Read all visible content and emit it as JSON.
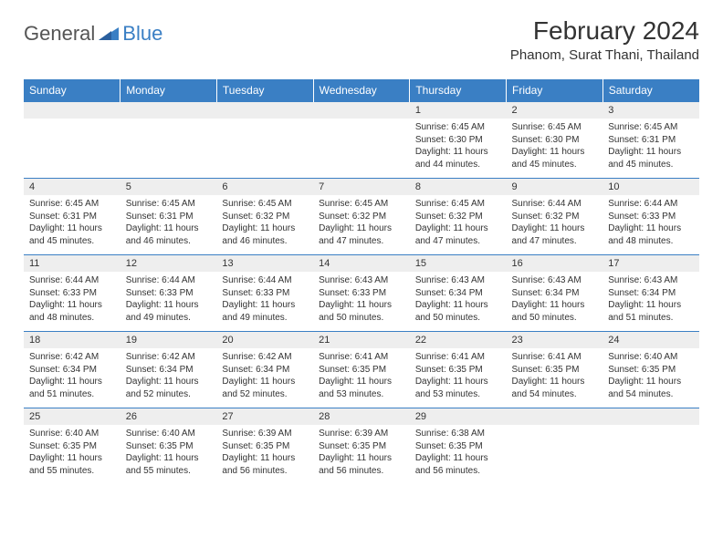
{
  "brand": {
    "part1": "General",
    "part2": "Blue"
  },
  "title": "February 2024",
  "location": "Phanom, Surat Thani, Thailand",
  "colors": {
    "header_bg": "#3a7fc4",
    "header_text": "#ffffff",
    "daynum_bg": "#eeeeee",
    "border": "#3a7fc4",
    "text": "#333333",
    "page_bg": "#ffffff"
  },
  "day_headers": [
    "Sunday",
    "Monday",
    "Tuesday",
    "Wednesday",
    "Thursday",
    "Friday",
    "Saturday"
  ],
  "weeks": [
    [
      {
        "n": "",
        "sr": "",
        "ss": "",
        "dl": ""
      },
      {
        "n": "",
        "sr": "",
        "ss": "",
        "dl": ""
      },
      {
        "n": "",
        "sr": "",
        "ss": "",
        "dl": ""
      },
      {
        "n": "",
        "sr": "",
        "ss": "",
        "dl": ""
      },
      {
        "n": "1",
        "sr": "Sunrise: 6:45 AM",
        "ss": "Sunset: 6:30 PM",
        "dl": "Daylight: 11 hours and 44 minutes."
      },
      {
        "n": "2",
        "sr": "Sunrise: 6:45 AM",
        "ss": "Sunset: 6:30 PM",
        "dl": "Daylight: 11 hours and 45 minutes."
      },
      {
        "n": "3",
        "sr": "Sunrise: 6:45 AM",
        "ss": "Sunset: 6:31 PM",
        "dl": "Daylight: 11 hours and 45 minutes."
      }
    ],
    [
      {
        "n": "4",
        "sr": "Sunrise: 6:45 AM",
        "ss": "Sunset: 6:31 PM",
        "dl": "Daylight: 11 hours and 45 minutes."
      },
      {
        "n": "5",
        "sr": "Sunrise: 6:45 AM",
        "ss": "Sunset: 6:31 PM",
        "dl": "Daylight: 11 hours and 46 minutes."
      },
      {
        "n": "6",
        "sr": "Sunrise: 6:45 AM",
        "ss": "Sunset: 6:32 PM",
        "dl": "Daylight: 11 hours and 46 minutes."
      },
      {
        "n": "7",
        "sr": "Sunrise: 6:45 AM",
        "ss": "Sunset: 6:32 PM",
        "dl": "Daylight: 11 hours and 47 minutes."
      },
      {
        "n": "8",
        "sr": "Sunrise: 6:45 AM",
        "ss": "Sunset: 6:32 PM",
        "dl": "Daylight: 11 hours and 47 minutes."
      },
      {
        "n": "9",
        "sr": "Sunrise: 6:44 AM",
        "ss": "Sunset: 6:32 PM",
        "dl": "Daylight: 11 hours and 47 minutes."
      },
      {
        "n": "10",
        "sr": "Sunrise: 6:44 AM",
        "ss": "Sunset: 6:33 PM",
        "dl": "Daylight: 11 hours and 48 minutes."
      }
    ],
    [
      {
        "n": "11",
        "sr": "Sunrise: 6:44 AM",
        "ss": "Sunset: 6:33 PM",
        "dl": "Daylight: 11 hours and 48 minutes."
      },
      {
        "n": "12",
        "sr": "Sunrise: 6:44 AM",
        "ss": "Sunset: 6:33 PM",
        "dl": "Daylight: 11 hours and 49 minutes."
      },
      {
        "n": "13",
        "sr": "Sunrise: 6:44 AM",
        "ss": "Sunset: 6:33 PM",
        "dl": "Daylight: 11 hours and 49 minutes."
      },
      {
        "n": "14",
        "sr": "Sunrise: 6:43 AM",
        "ss": "Sunset: 6:33 PM",
        "dl": "Daylight: 11 hours and 50 minutes."
      },
      {
        "n": "15",
        "sr": "Sunrise: 6:43 AM",
        "ss": "Sunset: 6:34 PM",
        "dl": "Daylight: 11 hours and 50 minutes."
      },
      {
        "n": "16",
        "sr": "Sunrise: 6:43 AM",
        "ss": "Sunset: 6:34 PM",
        "dl": "Daylight: 11 hours and 50 minutes."
      },
      {
        "n": "17",
        "sr": "Sunrise: 6:43 AM",
        "ss": "Sunset: 6:34 PM",
        "dl": "Daylight: 11 hours and 51 minutes."
      }
    ],
    [
      {
        "n": "18",
        "sr": "Sunrise: 6:42 AM",
        "ss": "Sunset: 6:34 PM",
        "dl": "Daylight: 11 hours and 51 minutes."
      },
      {
        "n": "19",
        "sr": "Sunrise: 6:42 AM",
        "ss": "Sunset: 6:34 PM",
        "dl": "Daylight: 11 hours and 52 minutes."
      },
      {
        "n": "20",
        "sr": "Sunrise: 6:42 AM",
        "ss": "Sunset: 6:34 PM",
        "dl": "Daylight: 11 hours and 52 minutes."
      },
      {
        "n": "21",
        "sr": "Sunrise: 6:41 AM",
        "ss": "Sunset: 6:35 PM",
        "dl": "Daylight: 11 hours and 53 minutes."
      },
      {
        "n": "22",
        "sr": "Sunrise: 6:41 AM",
        "ss": "Sunset: 6:35 PM",
        "dl": "Daylight: 11 hours and 53 minutes."
      },
      {
        "n": "23",
        "sr": "Sunrise: 6:41 AM",
        "ss": "Sunset: 6:35 PM",
        "dl": "Daylight: 11 hours and 54 minutes."
      },
      {
        "n": "24",
        "sr": "Sunrise: 6:40 AM",
        "ss": "Sunset: 6:35 PM",
        "dl": "Daylight: 11 hours and 54 minutes."
      }
    ],
    [
      {
        "n": "25",
        "sr": "Sunrise: 6:40 AM",
        "ss": "Sunset: 6:35 PM",
        "dl": "Daylight: 11 hours and 55 minutes."
      },
      {
        "n": "26",
        "sr": "Sunrise: 6:40 AM",
        "ss": "Sunset: 6:35 PM",
        "dl": "Daylight: 11 hours and 55 minutes."
      },
      {
        "n": "27",
        "sr": "Sunrise: 6:39 AM",
        "ss": "Sunset: 6:35 PM",
        "dl": "Daylight: 11 hours and 56 minutes."
      },
      {
        "n": "28",
        "sr": "Sunrise: 6:39 AM",
        "ss": "Sunset: 6:35 PM",
        "dl": "Daylight: 11 hours and 56 minutes."
      },
      {
        "n": "29",
        "sr": "Sunrise: 6:38 AM",
        "ss": "Sunset: 6:35 PM",
        "dl": "Daylight: 11 hours and 56 minutes."
      },
      {
        "n": "",
        "sr": "",
        "ss": "",
        "dl": ""
      },
      {
        "n": "",
        "sr": "",
        "ss": "",
        "dl": ""
      }
    ]
  ]
}
